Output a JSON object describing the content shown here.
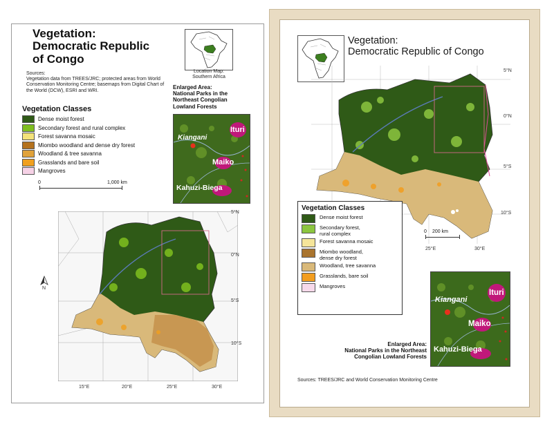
{
  "left": {
    "title": "Vegetation:\nDemocratic Republic\nof Congo",
    "location_map_label": "Location Map:\nSouthern Africa",
    "sources_heading": "Sources:",
    "sources_text": "Vegetation data from TREES/JRC; protected areas from World Conservation Monitoring Centre; basemaps from Digital Chart of the World (DCW), ESRI and WRI.",
    "legend_title": "Vegetation Classes",
    "legend": [
      {
        "label": "Dense moist forest",
        "color": "#2f5a17"
      },
      {
        "label": "Secondary forest and rural complex",
        "color": "#7fbf1f"
      },
      {
        "label": "Forest savanna mosaic",
        "color": "#f3e27a"
      },
      {
        "label": "Miombo woodland and dense dry forest",
        "color": "#b4721e"
      },
      {
        "label": "Woodland & tree savanna",
        "color": "#e0a23a"
      },
      {
        "label": "Grasslands and bare soil",
        "color": "#f0a020"
      },
      {
        "label": "Mangroves",
        "color": "#f6d2e6"
      }
    ],
    "scale": {
      "start": "0",
      "end": "1,000  km"
    },
    "enlarged_heading": "Enlarged Area:\nNational Parks in the\nNortheast Congolian\nLowland Forests",
    "inset_labels": {
      "city": "Kiangani",
      "park1": "Ituri",
      "park2": "Maiko",
      "park3": "Kahuzi-Biega"
    },
    "north": "N",
    "lat_labels": [
      "5°N",
      "0°N",
      "5°S",
      "10°S"
    ],
    "lon_labels": [
      "15°E",
      "20°E",
      "25°E",
      "30°E"
    ]
  },
  "right": {
    "title": "Vegetation:\nDemocratic Republic of Congo",
    "legend_title": "Vegetation Classes",
    "legend": [
      {
        "label": "Dense moist forest",
        "color": "#2f5a17"
      },
      {
        "label": "Secondary forest,\nrural complex",
        "color": "#8cc63f"
      },
      {
        "label": "Forest  savanna mosaic",
        "color": "#f5e59a"
      },
      {
        "label": "Miombo woodland,\ndense dry forest",
        "color": "#a9742e"
      },
      {
        "label": "Woodland, tree savanna",
        "color": "#d9b97a"
      },
      {
        "label": "Grasslands, bare soil",
        "color": "#f29d1f"
      },
      {
        "label": "Mangroves",
        "color": "#f7d9ea"
      }
    ],
    "scale": {
      "start": "0",
      "end": "200 km"
    },
    "enlarged_heading": "Enlarged Area:\nNational Parks in the Northeast\nCongolian Lowland Forests",
    "inset_labels": {
      "city": "Kiangani",
      "park1": "Ituri",
      "park2": "Maiko",
      "park3": "Kahuzi-Biega"
    },
    "lat_labels": [
      "5°N",
      "0°N",
      "5°S",
      "10°S"
    ],
    "lon_labels": [
      "25°E",
      "30°E"
    ],
    "sources": "Sources: TREES/JRC and World Conservation Monitoring Centre"
  },
  "colors": {
    "dense_forest": "#2f5a17",
    "secondary_forest": "#7fbf1f",
    "savanna": "#d9b97a",
    "grassland": "#f0a020",
    "park_magenta": "#c0187a",
    "city_red": "#e8301c"
  }
}
